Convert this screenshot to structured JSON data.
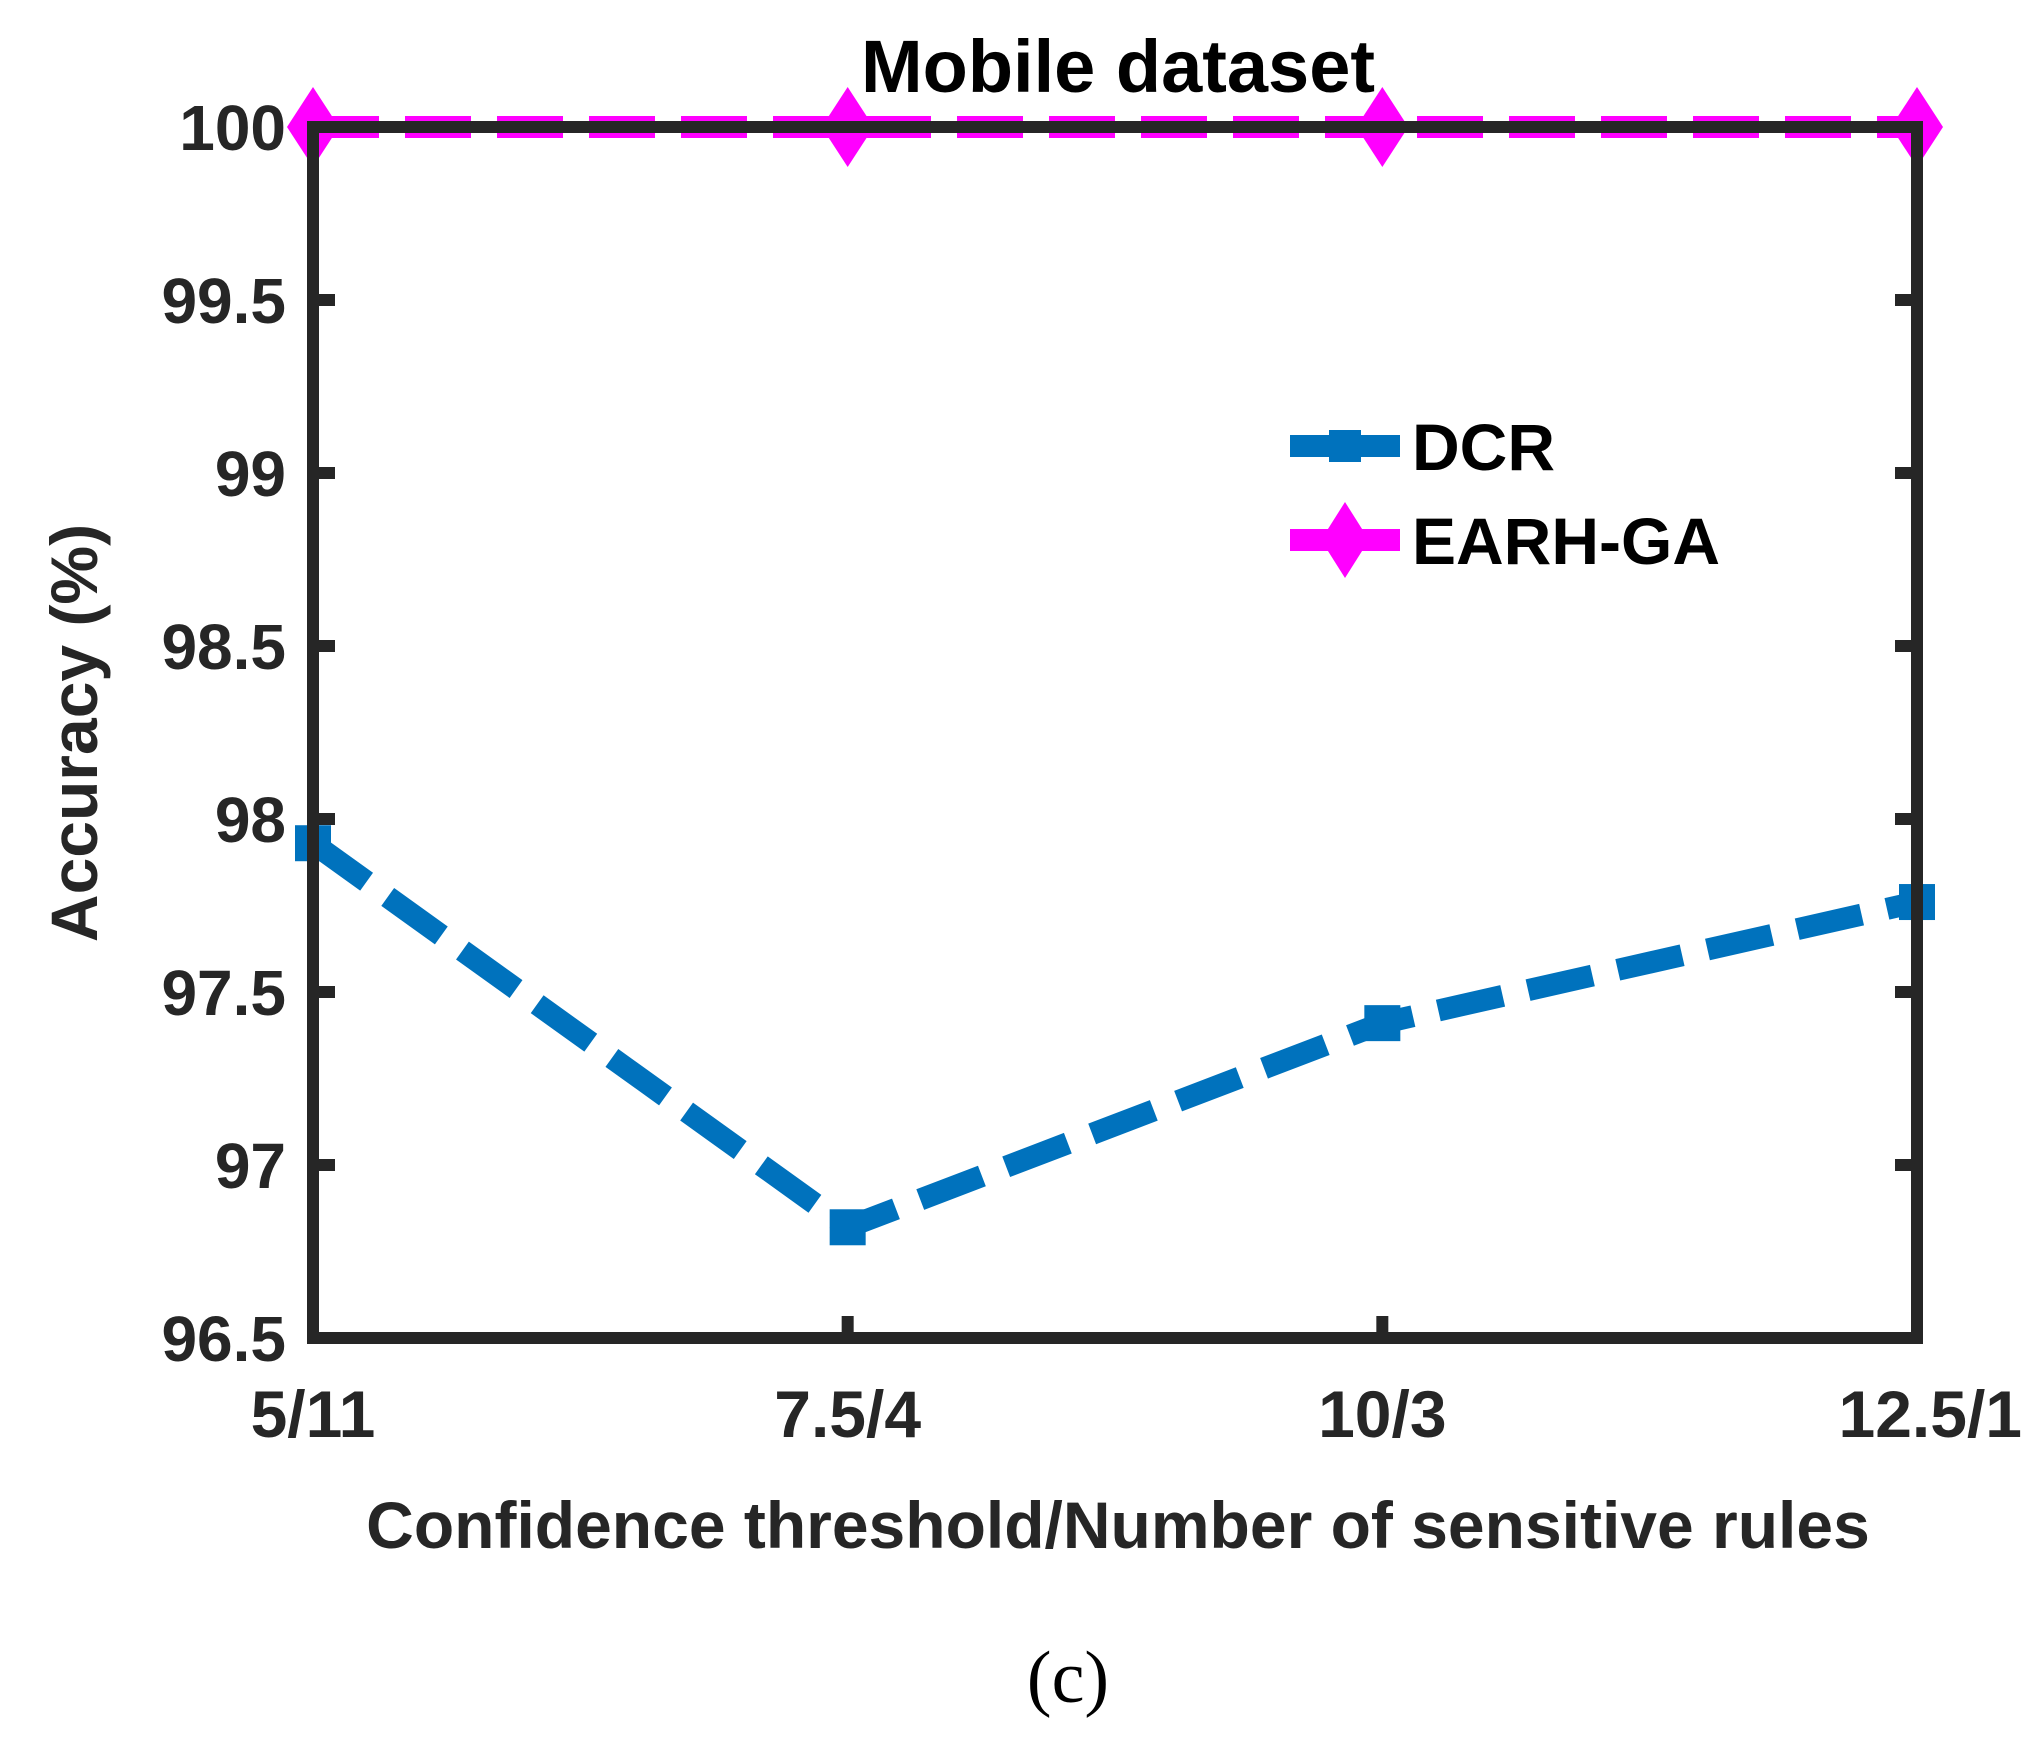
{
  "chart_data": {
    "type": "line",
    "title": "Mobile dataset",
    "xlabel": "Confidence threshold/Number of sensitive rules",
    "ylabel": "Accuracy (%)",
    "categories": [
      "5/11",
      "7.5/4",
      "10/3",
      "12.5/1"
    ],
    "ylim": [
      96.5,
      100
    ],
    "yticks": [
      96.5,
      97,
      97.5,
      98,
      98.5,
      99,
      99.5,
      100
    ],
    "ytick_labels": [
      "96.5",
      "97",
      "97.5",
      "98",
      "98.5",
      "99",
      "99.5",
      "100"
    ],
    "grid": false,
    "legend_position": "center-right",
    "series": [
      {
        "name": "DCR",
        "values": [
          97.93,
          96.82,
          97.41,
          97.76
        ],
        "color": "#0072BD",
        "marker": "square",
        "line_style": "dashed"
      },
      {
        "name": "EARH-GA",
        "values": [
          100,
          100,
          100,
          100
        ],
        "color": "#FF00FF",
        "marker": "diamond",
        "line_style": "dashed"
      }
    ]
  },
  "caption": "(c)"
}
